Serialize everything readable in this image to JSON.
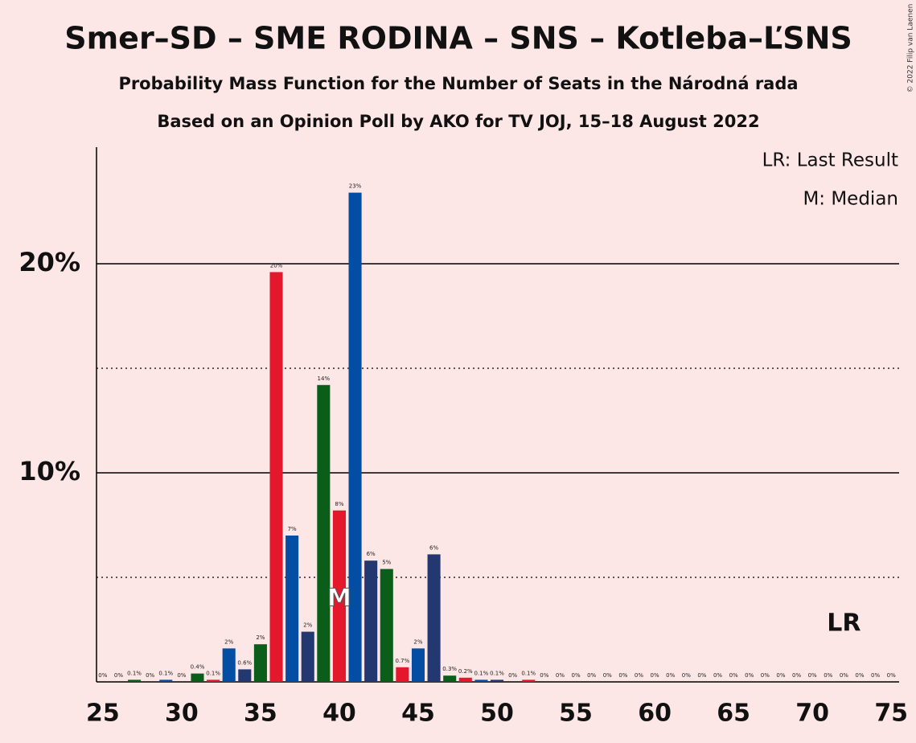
{
  "chart_data": {
    "type": "bar",
    "title": "Smer–SD – SME RODINA – SNS – Kotleba–ĽSNS",
    "subtitle": "Probability Mass Function for the Number of Seats in the Národná rada",
    "subtitle2": "Based on an Opinion Poll by AKO for TV JOJ, 15–18 August 2022",
    "copyright": "© 2022 Filip van Laenen",
    "legend": [
      "LR: Last Result",
      "M: Median"
    ],
    "x": [
      25,
      26,
      27,
      28,
      29,
      30,
      31,
      32,
      33,
      34,
      35,
      36,
      37,
      38,
      39,
      40,
      41,
      42,
      43,
      44,
      45,
      46,
      47,
      48,
      49,
      50,
      51,
      52,
      53,
      54,
      55,
      56,
      57,
      58,
      59,
      60,
      61,
      62,
      63,
      64,
      65,
      66,
      67,
      68,
      69,
      70,
      71,
      72,
      73,
      74,
      75
    ],
    "values": [
      0,
      0,
      0.1,
      0,
      0.1,
      0,
      0.4,
      0.1,
      1.6,
      0.6,
      1.8,
      19.6,
      7.0,
      2.4,
      14.2,
      8.2,
      23.4,
      5.8,
      5.4,
      0.7,
      1.6,
      6.1,
      0.3,
      0.2,
      0.1,
      0.1,
      0,
      0.1,
      0,
      0,
      0,
      0,
      0,
      0,
      0,
      0,
      0,
      0,
      0,
      0,
      0,
      0,
      0,
      0,
      0,
      0,
      0,
      0,
      0,
      0,
      0
    ],
    "value_labels": [
      "0%",
      "0%",
      "0.1%",
      "0%",
      "0.1%",
      "0%",
      "0.4%",
      "0.1%",
      "2%",
      "0.6%",
      "2%",
      "20%",
      "7%",
      "2%",
      "14%",
      "8%",
      "23%",
      "6%",
      "5%",
      "0.7%",
      "2%",
      "6%",
      "0.3%",
      "0.2%",
      "0.1%",
      "0.1%",
      "0%",
      "0.1%",
      "0%",
      "0%",
      "0%",
      "0%",
      "0%",
      "0%",
      "0%",
      "0%",
      "0%",
      "0%",
      "0%",
      "0%",
      "0%",
      "0%",
      "0%",
      "0%",
      "0%",
      "0%",
      "0%",
      "0%",
      "0%",
      "0%",
      "0%"
    ],
    "colors": [
      "#034ea2",
      "#233870",
      "#0b5e19",
      "#e3182d",
      "#034ea2",
      "#233870",
      "#0b5e19",
      "#e3182d",
      "#034ea2",
      "#233870",
      "#0b5e19",
      "#e3182d",
      "#034ea2",
      "#233870",
      "#0b5e19",
      "#e3182d",
      "#034ea2",
      "#233870",
      "#0b5e19",
      "#e3182d",
      "#034ea2",
      "#233870",
      "#0b5e19",
      "#e3182d",
      "#034ea2",
      "#233870",
      "#0b5e19",
      "#e3182d",
      "#034ea2",
      "#233870",
      "#0b5e19",
      "#e3182d",
      "#034ea2",
      "#233870",
      "#0b5e19",
      "#e3182d",
      "#034ea2",
      "#233870",
      "#0b5e19",
      "#e3182d",
      "#034ea2",
      "#233870",
      "#0b5e19",
      "#e3182d",
      "#034ea2",
      "#233870",
      "#0b5e19",
      "#e3182d",
      "#034ea2",
      "#233870",
      "#0b5e19"
    ],
    "xlim": [
      24.6,
      75.5
    ],
    "xticks": [
      25,
      30,
      35,
      40,
      45,
      50,
      55,
      60,
      65,
      70,
      75
    ],
    "ylim": [
      0,
      25.5
    ],
    "yticks": [
      {
        "value": 10,
        "label": "10%"
      },
      {
        "value": 20,
        "label": "20%"
      }
    ],
    "minor_yticks": [
      5,
      15
    ],
    "median": 40,
    "median_label": "M",
    "last_result": 72,
    "last_result_label": "LR"
  }
}
